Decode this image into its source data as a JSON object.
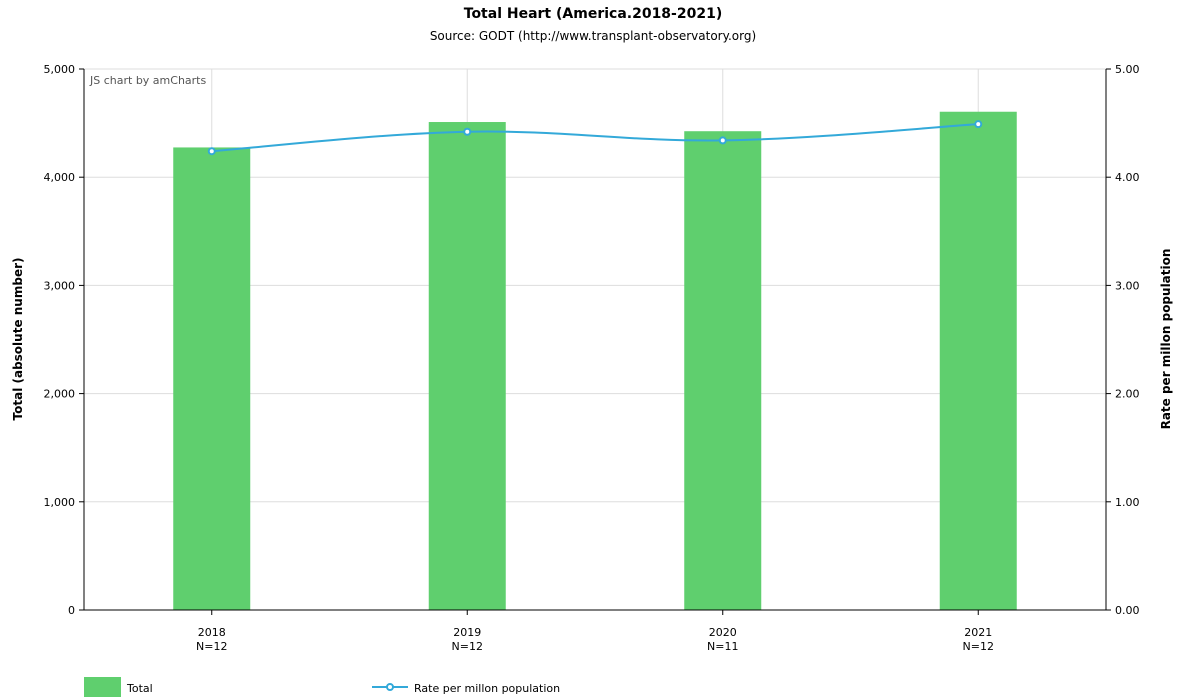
{
  "credit": "JS chart by amCharts",
  "chart_data": {
    "type": "bar",
    "title": "Total Heart (America.2018-2021)",
    "subtitle": "Source: GODT (http://www.transplant-observatory.org)",
    "categories": [
      "2018",
      "2019",
      "2020",
      "2021"
    ],
    "category_notes": [
      "N=12",
      "N=12",
      "N=11",
      "N=12"
    ],
    "ylabel": "Total (absolute number)",
    "y2label": "Rate per millon population",
    "ylim": [
      0,
      5000
    ],
    "y2lim": [
      0,
      5
    ],
    "yticks": [
      "0",
      "1,000",
      "2,000",
      "3,000",
      "4,000",
      "5,000"
    ],
    "y2ticks": [
      "0.00",
      "1.00",
      "2.00",
      "3.00",
      "4.00",
      "5.00"
    ],
    "grid": true,
    "legend_position": "bottom-left",
    "series": [
      {
        "name": "Total",
        "type": "bar",
        "axis": "left",
        "color": "#5fcf6e",
        "values": [
          4275,
          4510,
          4425,
          4605
        ]
      },
      {
        "name": "Rate per millon population",
        "type": "line",
        "axis": "right",
        "color": "#33a9d9",
        "values": [
          4.24,
          4.42,
          4.34,
          4.49
        ]
      }
    ]
  }
}
